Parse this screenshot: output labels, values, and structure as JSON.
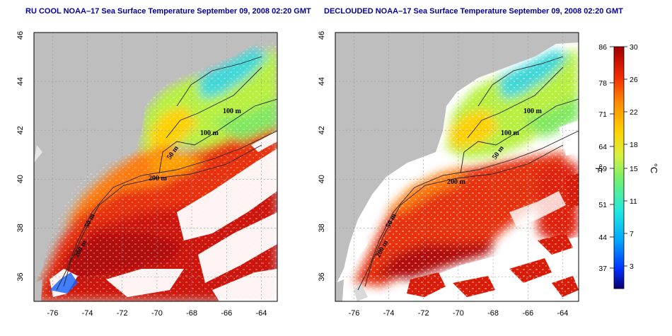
{
  "panels": [
    {
      "id": "left",
      "title": "RU COOL NOAA–17 Sea Surface Temperature September 09, 2008 02:20 GMT",
      "declouded": false
    },
    {
      "id": "right",
      "title": "DECLOUDED NOAA–17 Sea Surface Temperature September 09, 2008 02:20 GMT",
      "declouded": true
    }
  ],
  "axes": {
    "lon_min": -77,
    "lon_max": -63,
    "lat_min": 35,
    "lat_max": 46,
    "lon_ticks": [
      "-76",
      "-74",
      "-72",
      "-70",
      "-68",
      "-66",
      "-64"
    ],
    "lat_ticks": [
      "36",
      "38",
      "40",
      "42",
      "44",
      "46"
    ]
  },
  "contours": {
    "labels": [
      "100 m",
      "100 m",
      "50 m",
      "200 m",
      "50 m",
      "200 m"
    ]
  },
  "colorbar": {
    "fahrenheit_ticks": [
      "86",
      "78",
      "71",
      "64",
      "59",
      "51",
      "44",
      "37"
    ],
    "celsius_ticks": [
      "30",
      "26",
      "22",
      "18",
      "15",
      "11",
      "7",
      "3"
    ],
    "unit_f": "°F",
    "unit_c": "°C"
  },
  "colors": {
    "land": "#bebebe",
    "cloud": "#ffffff",
    "title": "#0000a0",
    "grid": "#9a9a9a"
  },
  "icons": [
    "latitude-longitude-grid",
    "bathymetry-contours",
    "temperature-colorbar"
  ]
}
